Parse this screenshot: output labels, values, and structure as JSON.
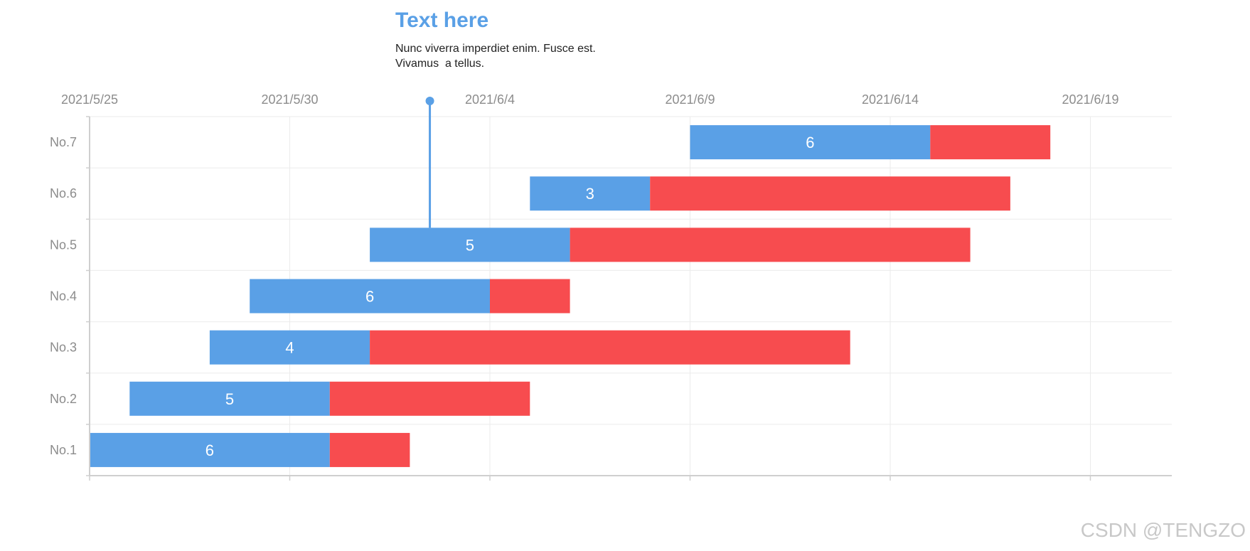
{
  "chart_data": {
    "type": "bar",
    "orientation": "horizontal",
    "stacked": true,
    "x_axis": {
      "type": "date",
      "tick_labels": [
        "2021/5/25",
        "2021/5/30",
        "2021/6/4",
        "2021/6/9",
        "2021/6/14",
        "2021/6/19"
      ],
      "range": [
        "2021/5/25",
        "2021/6/21"
      ],
      "position": "top"
    },
    "categories": [
      "No.1",
      "No.2",
      "No.3",
      "No.4",
      "No.5",
      "No.6",
      "No.7"
    ],
    "tasks": [
      {
        "category": "No.1",
        "start": "2021/5/25",
        "planned_days": 6,
        "overrun_days": 2
      },
      {
        "category": "No.2",
        "start": "2021/5/26",
        "planned_days": 5,
        "overrun_days": 5
      },
      {
        "category": "No.3",
        "start": "2021/5/28",
        "planned_days": 4,
        "overrun_days": 12
      },
      {
        "category": "No.4",
        "start": "2021/5/29",
        "planned_days": 6,
        "overrun_days": 2
      },
      {
        "category": "No.5",
        "start": "2021/6/1",
        "planned_days": 5,
        "overrun_days": 10
      },
      {
        "category": "No.6",
        "start": "2021/6/5",
        "planned_days": 3,
        "overrun_days": 9
      },
      {
        "category": "No.7",
        "start": "2021/6/9",
        "planned_days": 6,
        "overrun_days": 3
      }
    ],
    "colors": {
      "planned": "#5aa0e6",
      "overrun": "#f74c4f",
      "grid": "#ebebeb",
      "axis": "#cfcfcf"
    },
    "grid": true,
    "annotation": {
      "title": "Text here",
      "lines": [
        "Nunc viverra imperdiet enim. Fusce est.",
        "Vivamus  a tellus."
      ],
      "marker_date": "2021/6/2",
      "attached_to": "No.5",
      "color": "#5aa0e6"
    }
  },
  "watermark": "CSDN @TENGZO"
}
